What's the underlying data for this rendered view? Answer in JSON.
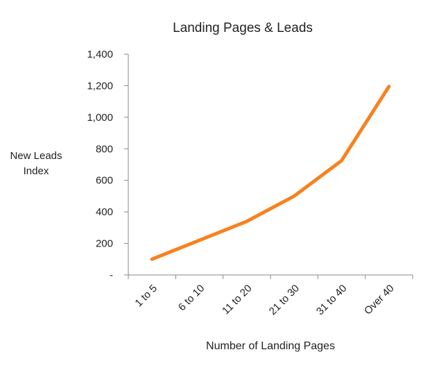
{
  "chart_data": {
    "type": "line",
    "title": "Landing Pages & Leads",
    "x_label": "Number of Landing Pages",
    "y_label": "New Leads Index",
    "categories": [
      "1 to 5",
      "6 to 10",
      "11 to 20",
      "21 to 30",
      "31 to 40",
      "Over 40"
    ],
    "series": [
      {
        "name": "New Leads Index",
        "color": "#f7821f",
        "values": [
          100,
          220,
          340,
          500,
          725,
          1195
        ]
      }
    ],
    "ylim": [
      0,
      1400
    ],
    "yticks": [
      {
        "value": 0,
        "label": "-"
      },
      200,
      400,
      600,
      800,
      {
        "value": 1000,
        "label": "1,000"
      },
      {
        "value": 1200,
        "label": "1,200"
      },
      {
        "value": 1400,
        "label": "1,400"
      }
    ],
    "grid": false,
    "legend": false
  }
}
